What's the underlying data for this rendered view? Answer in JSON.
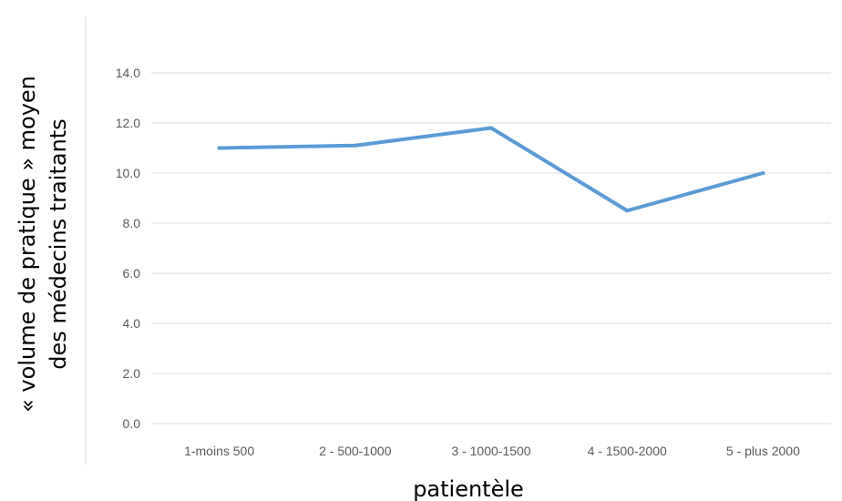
{
  "chart_data": {
    "type": "line",
    "title": "",
    "xlabel": "patientèle",
    "ylabel_lines": [
      "« volume de pratique » moyen",
      "des médecins traitants"
    ],
    "categories": [
      "1-moins 500",
      "2 - 500-1000",
      "3 - 1000-1500",
      "4 - 1500-2000",
      "5 - plus 2000"
    ],
    "series": [
      {
        "values": [
          11.0,
          11.1,
          11.8,
          8.5,
          10.0
        ]
      }
    ],
    "ylim": [
      0,
      14
    ],
    "yticks": [
      "0.0",
      "2.0",
      "4.0",
      "6.0",
      "8.0",
      "10.0",
      "12.0",
      "14.0"
    ],
    "grid": true,
    "legend": "none",
    "colors": {
      "line": "#5b9bd5",
      "grid": "#d9d9d9",
      "tick_text": "#595959",
      "frame": "#d9d9d9"
    }
  }
}
